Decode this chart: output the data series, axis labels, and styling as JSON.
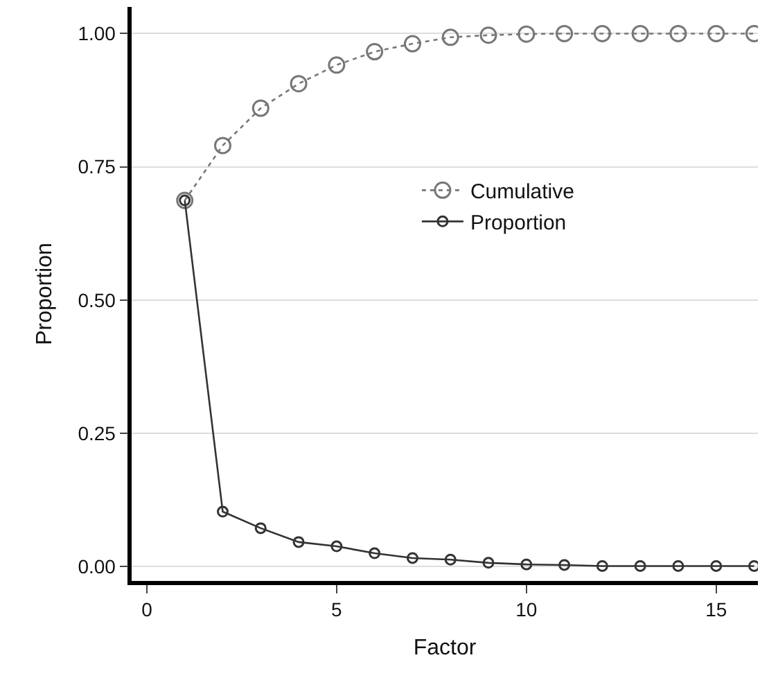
{
  "chart_data": {
    "type": "line",
    "xlabel": "Factor",
    "ylabel": "Proportion",
    "x": [
      1,
      2,
      3,
      4,
      5,
      6,
      7,
      8,
      9,
      10,
      11,
      12,
      13,
      14,
      15,
      16
    ],
    "series": [
      {
        "name": "Cumulative",
        "color": "#777777",
        "line_style": "dotted",
        "values": [
          0.687,
          0.79,
          0.86,
          0.906,
          0.941,
          0.966,
          0.981,
          0.993,
          0.997,
          0.999,
          1.0,
          1.0,
          1.0,
          1.0,
          1.0,
          1.0
        ]
      },
      {
        "name": "Proportion",
        "color": "#333333",
        "line_style": "solid",
        "values": [
          0.687,
          0.103,
          0.072,
          0.046,
          0.038,
          0.025,
          0.016,
          0.013,
          0.007,
          0.004,
          0.003,
          0.001,
          0.001,
          0.001,
          0.001,
          0.001
        ]
      }
    ],
    "marker": "circle",
    "grid": "y",
    "legend": "top right",
    "xlim": [
      -0.4,
      16.1
    ],
    "xticks": [
      0,
      5,
      10,
      15
    ],
    "ylim": [
      -0.027,
      1.05
    ],
    "yticks": [
      {
        "value": 0,
        "label": "0.00"
      },
      {
        "value": 0.25,
        "label": "0.25"
      },
      {
        "value": 0.5,
        "label": "0.50"
      },
      {
        "value": 0.75,
        "label": "0.75"
      },
      {
        "value": 1,
        "label": "1.00"
      }
    ]
  }
}
